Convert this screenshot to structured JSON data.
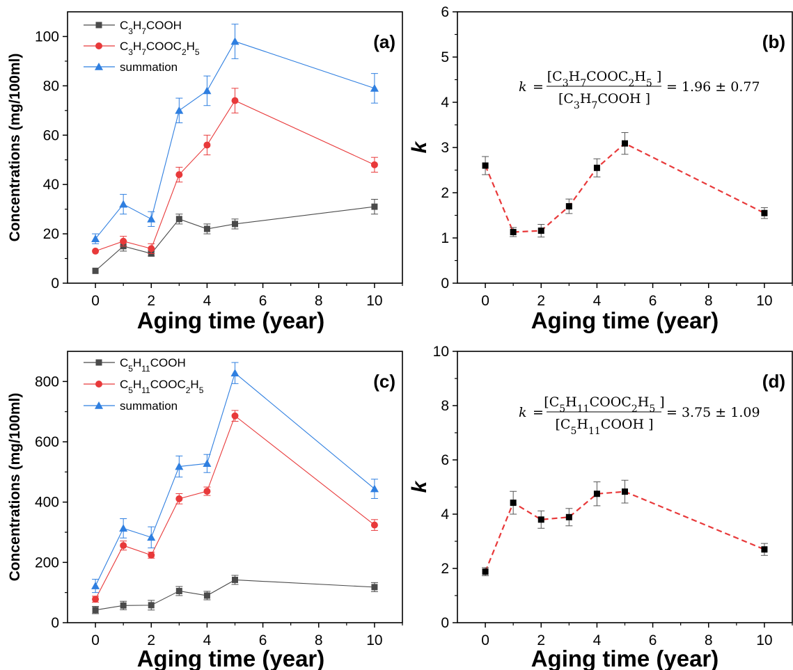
{
  "colors": {
    "series1": "#4a4a4a",
    "series2": "#e8393a",
    "series3": "#2f7fe0",
    "k_line": "#e8393a",
    "k_marker": "#000000",
    "errorbar": "#555555"
  },
  "chart_data": [
    {
      "id": "a",
      "type": "line",
      "panel_label": "(a)",
      "xlabel": "Aging time (year)",
      "ylabel": "Concentrations (mg/100ml)",
      "xlim": [
        -1,
        11
      ],
      "ylim": [
        0,
        110
      ],
      "xticks": [
        0,
        2,
        4,
        6,
        8,
        10
      ],
      "yticks": [
        0,
        20,
        40,
        60,
        80,
        100
      ],
      "legend_position": "top-left",
      "x": [
        0,
        1,
        2,
        3,
        4,
        5,
        10
      ],
      "series": [
        {
          "legend_html": "C<tspan baseline-shift=\"sub\" font-size=\"12\">3</tspan>H<tspan baseline-shift=\"sub\" font-size=\"12\">7</tspan>COOH",
          "marker": "square",
          "color": "#4a4a4a",
          "values": [
            5,
            15,
            12,
            26,
            22,
            24,
            31
          ],
          "errors": [
            0,
            2,
            1,
            2,
            2,
            2,
            3
          ]
        },
        {
          "legend_html": "C<tspan baseline-shift=\"sub\" font-size=\"12\">3</tspan>H<tspan baseline-shift=\"sub\" font-size=\"12\">7</tspan>COOC<tspan baseline-shift=\"sub\" font-size=\"12\">2</tspan>H<tspan baseline-shift=\"sub\" font-size=\"12\">5</tspan>",
          "marker": "circle",
          "color": "#e8393a",
          "values": [
            13,
            17,
            14,
            44,
            56,
            74,
            48
          ],
          "errors": [
            0,
            2,
            2,
            3,
            4,
            5,
            3
          ]
        },
        {
          "name": "summation",
          "marker": "triangle",
          "color": "#2f7fe0",
          "values": [
            18,
            32,
            26,
            70,
            78,
            98,
            79
          ],
          "errors": [
            2,
            4,
            3,
            5,
            6,
            7,
            6
          ]
        }
      ]
    },
    {
      "id": "b",
      "type": "line",
      "panel_label": "(b)",
      "xlabel": "Aging time (year)",
      "ylabel": "k",
      "xlim": [
        -1,
        11
      ],
      "ylim": [
        0,
        6
      ],
      "xticks": [
        0,
        2,
        4,
        6,
        8,
        10
      ],
      "yticks": [
        0,
        1,
        2,
        3,
        4,
        5,
        6
      ],
      "annotation": "k = [C3H7COOC2H5 ] / [C3H7COOH ] = 1.96 ± 0.77",
      "x": [
        0,
        1,
        2,
        3,
        4,
        5,
        10
      ],
      "series": [
        {
          "marker": "square",
          "color": "#000000",
          "line_style": "dashed",
          "values": [
            2.6,
            1.13,
            1.16,
            1.7,
            2.55,
            3.09,
            1.55
          ],
          "errors": [
            0.2,
            0.1,
            0.14,
            0.16,
            0.2,
            0.24,
            0.12
          ]
        }
      ]
    },
    {
      "id": "c",
      "type": "line",
      "panel_label": "(c)",
      "xlabel": "Aging time (year)",
      "ylabel": "Concentrations (mg/100ml)",
      "xlim": [
        -1,
        11
      ],
      "ylim": [
        0,
        900
      ],
      "xticks": [
        0,
        2,
        4,
        6,
        8,
        10
      ],
      "yticks": [
        0,
        200,
        400,
        600,
        800
      ],
      "legend_position": "top-left",
      "x": [
        0,
        1,
        2,
        3,
        4,
        5,
        10
      ],
      "series": [
        {
          "legend_html": "C<tspan baseline-shift=\"sub\" font-size=\"12\">5</tspan>H<tspan baseline-shift=\"sub\" font-size=\"12\">11</tspan>COOH",
          "marker": "square",
          "color": "#4a4a4a",
          "values": [
            42,
            57,
            58,
            105,
            90,
            142,
            118
          ],
          "errors": [
            12,
            14,
            16,
            15,
            14,
            15,
            15
          ]
        },
        {
          "legend_html": "C<tspan baseline-shift=\"sub\" font-size=\"12\">5</tspan>H<tspan baseline-shift=\"sub\" font-size=\"12\">11</tspan>COOC<tspan baseline-shift=\"sub\" font-size=\"12\">2</tspan>H<tspan baseline-shift=\"sub\" font-size=\"12\">5</tspan>",
          "marker": "circle",
          "color": "#e8393a",
          "values": [
            78,
            256,
            224,
            411,
            436,
            686,
            324
          ],
          "errors": [
            10,
            15,
            10,
            17,
            14,
            18,
            18
          ]
        },
        {
          "name": "summation",
          "marker": "triangle",
          "color": "#2f7fe0",
          "values": [
            122,
            313,
            283,
            518,
            528,
            828,
            444
          ],
          "errors": [
            22,
            32,
            35,
            35,
            30,
            35,
            32
          ]
        }
      ]
    },
    {
      "id": "d",
      "type": "line",
      "panel_label": "(d)",
      "xlabel": "Aging time (year)",
      "ylabel": "k",
      "xlim": [
        -1,
        11
      ],
      "ylim": [
        0,
        10
      ],
      "xticks": [
        0,
        2,
        4,
        6,
        8,
        10
      ],
      "yticks": [
        0,
        2,
        4,
        6,
        8,
        10
      ],
      "annotation": "k = [C5H11COOC2H5 ] / [C5H11COOH ] = 3.75 ± 1.09",
      "x": [
        0,
        1,
        2,
        3,
        4,
        5,
        10
      ],
      "series": [
        {
          "marker": "square",
          "color": "#000000",
          "line_style": "dashed",
          "values": [
            1.88,
            4.42,
            3.8,
            3.89,
            4.75,
            4.83,
            2.7
          ],
          "errors": [
            0.15,
            0.42,
            0.32,
            0.32,
            0.44,
            0.42,
            0.22
          ]
        }
      ]
    }
  ]
}
